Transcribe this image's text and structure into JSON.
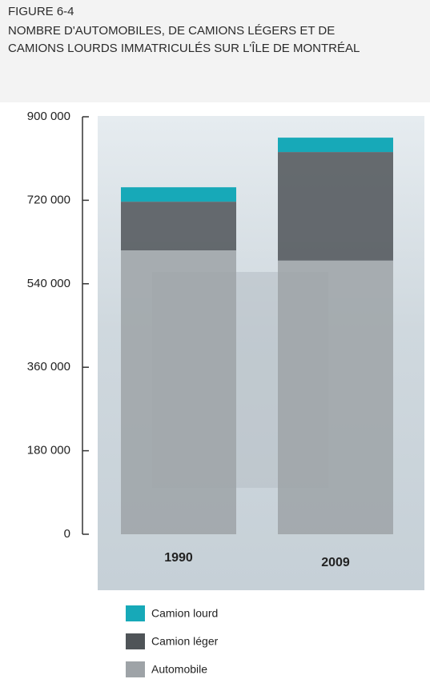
{
  "chart_data": {
    "type": "stacked-bar",
    "figure_label": "FIGURE 6-4",
    "title": "NOMBRE D'AUTOMOBILES, DE CAMIONS LÉGERS ET DE CAMIONS LOURDS IMMATRICULÉS SUR L'ÎLE DE MONTRÉAL",
    "categories": [
      "1990",
      "2009"
    ],
    "series": [
      {
        "name": "Automobile",
        "color": "#9ea3a7",
        "values": [
          612000,
          590000
        ]
      },
      {
        "name": "Camion léger",
        "color": "#4f5458",
        "values": [
          105000,
          234000
        ]
      },
      {
        "name": "Camion lourd",
        "color": "#17a9b8",
        "values": [
          31000,
          31000
        ]
      }
    ],
    "ylim": [
      0,
      900000
    ],
    "yticks": [
      {
        "value": 0,
        "label": "0"
      },
      {
        "value": 180000,
        "label": "180 000"
      },
      {
        "value": 360000,
        "label": "360 000"
      },
      {
        "value": 540000,
        "label": "540 000"
      },
      {
        "value": 720000,
        "label": "720 000"
      },
      {
        "value": 900000,
        "label": "900 000"
      }
    ]
  }
}
